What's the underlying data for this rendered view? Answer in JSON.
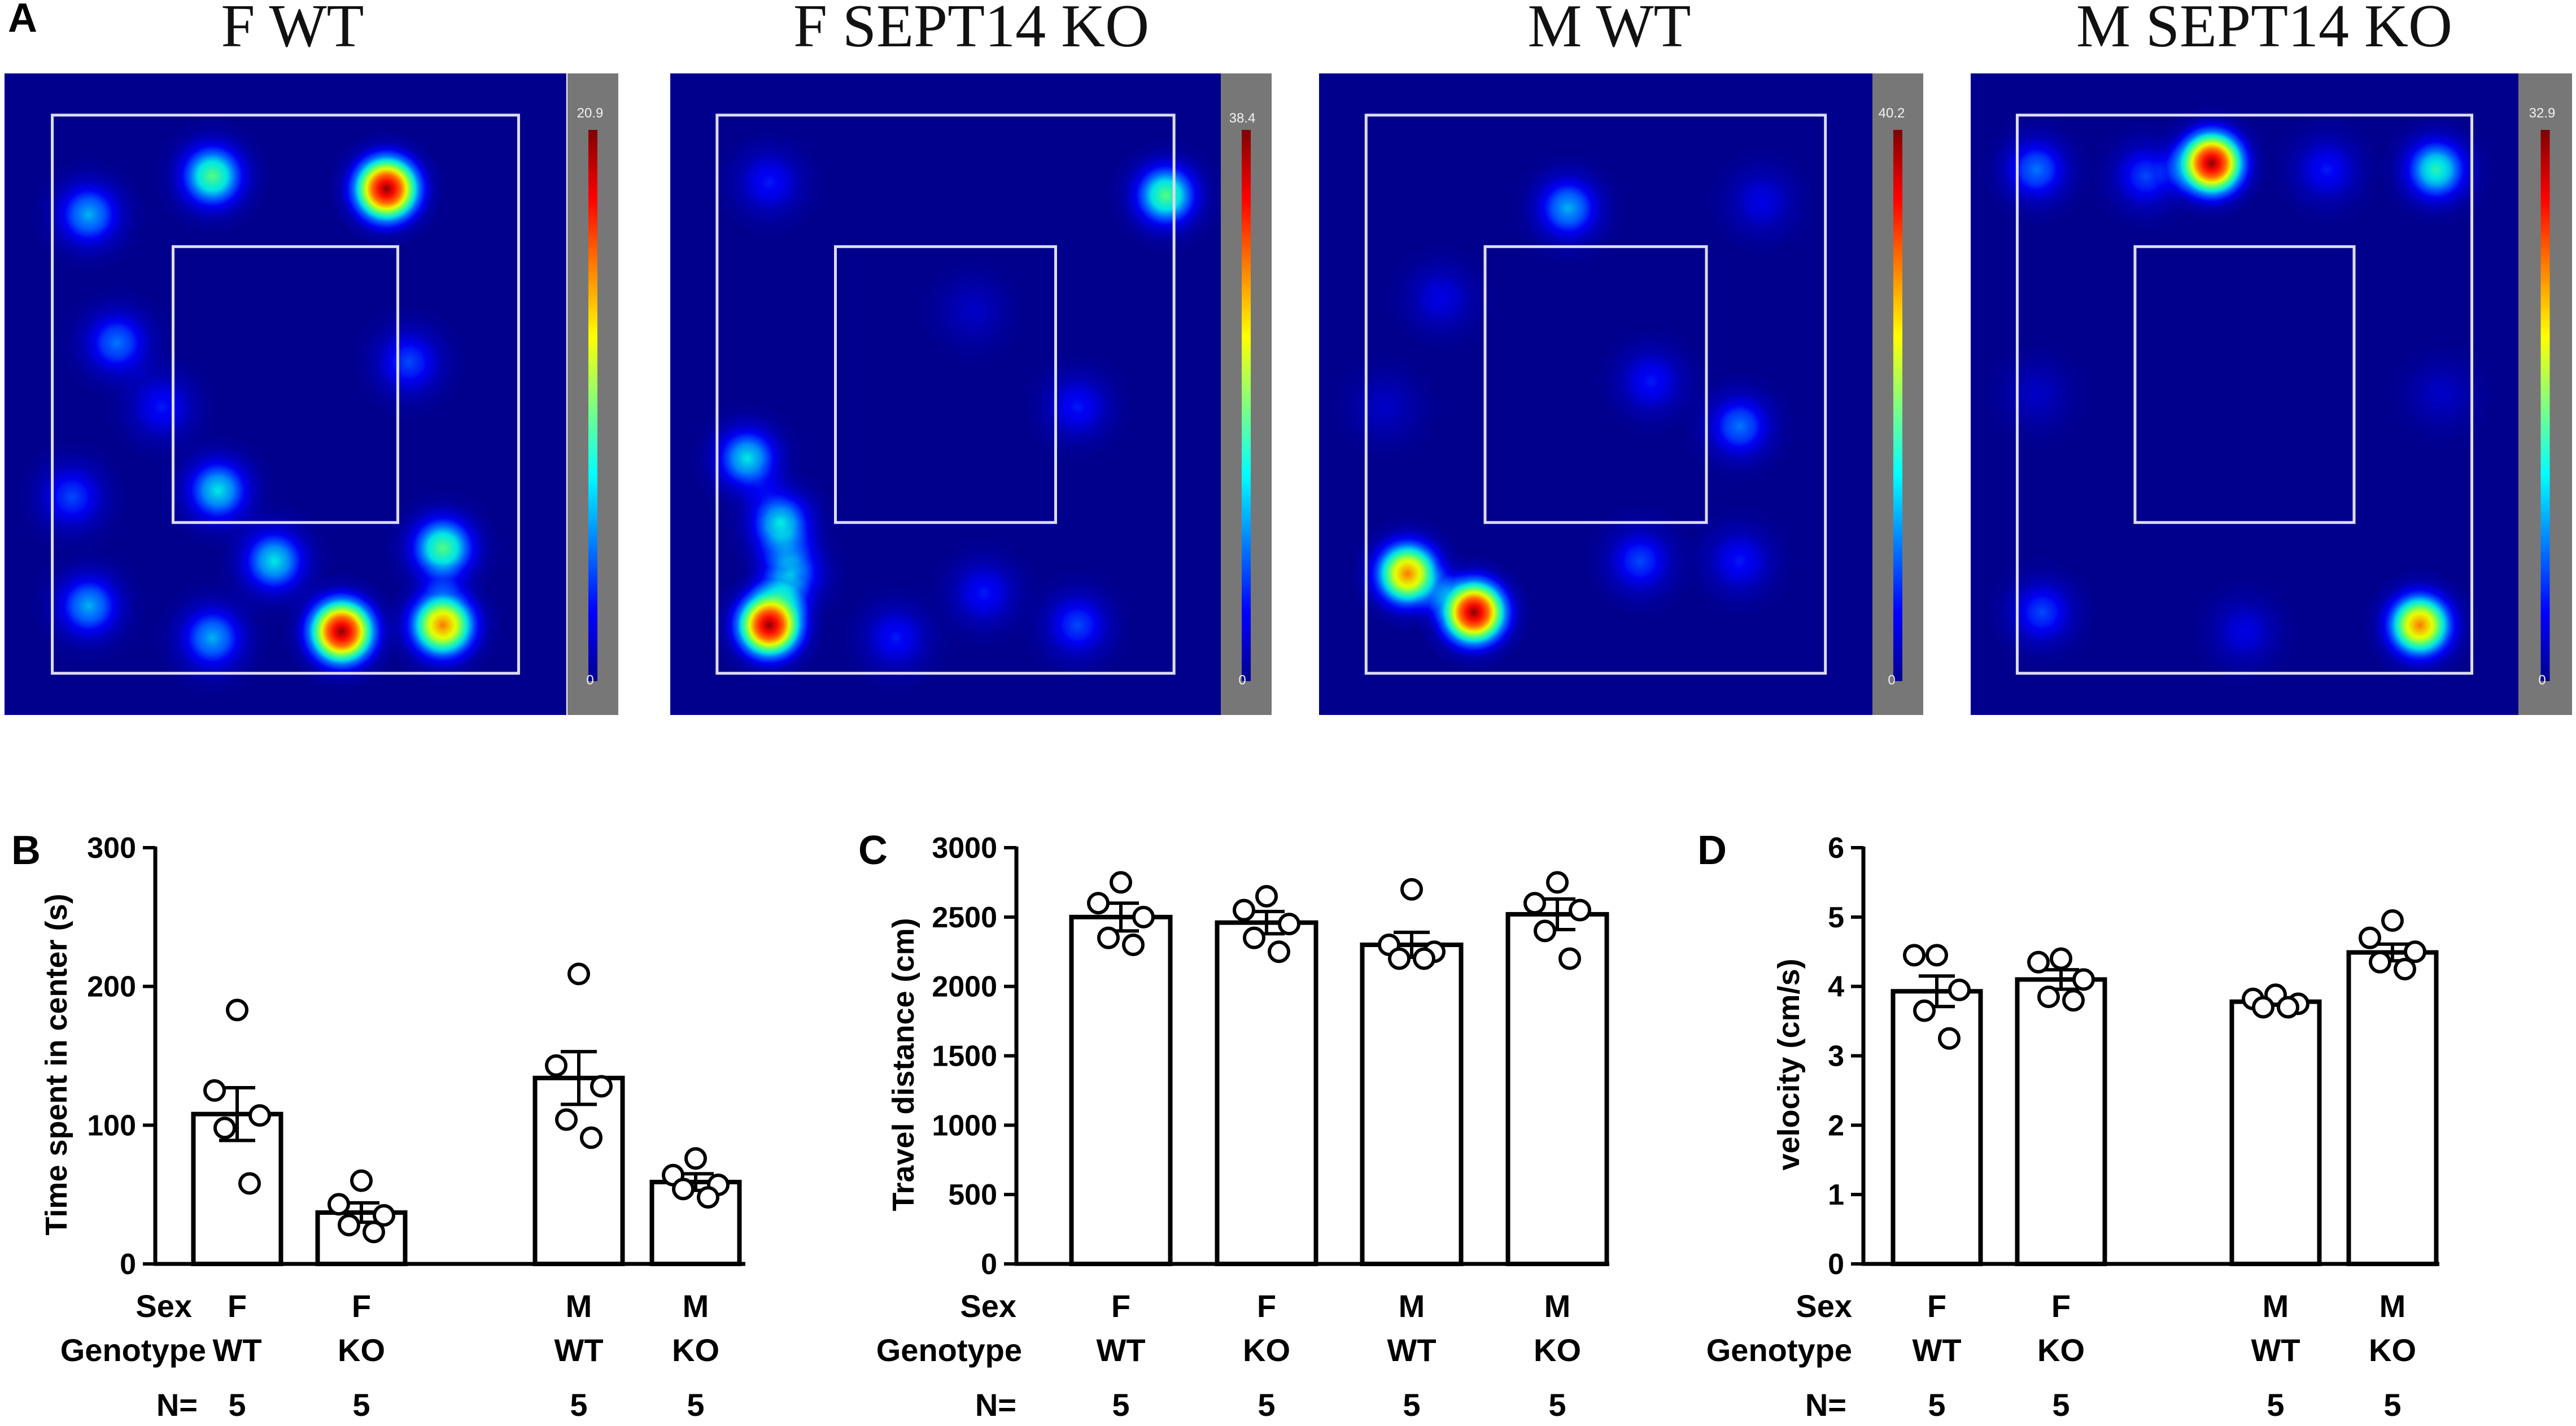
{
  "panel_labels": {
    "A": "A",
    "B": "B",
    "C": "C",
    "D": "D"
  },
  "heatmaps": [
    {
      "title": "F WT",
      "colorbar_max": "20.9",
      "colorbar_min": "0",
      "hotspots": [
        [
          0.68,
          0.18,
          1.0
        ],
        [
          0.6,
          0.87,
          1.0
        ],
        [
          0.78,
          0.86,
          0.8
        ],
        [
          0.78,
          0.74,
          0.55
        ],
        [
          0.37,
          0.16,
          0.55
        ],
        [
          0.15,
          0.22,
          0.4
        ],
        [
          0.2,
          0.42,
          0.35
        ],
        [
          0.38,
          0.65,
          0.45
        ],
        [
          0.48,
          0.76,
          0.45
        ],
        [
          0.15,
          0.83,
          0.4
        ],
        [
          0.37,
          0.88,
          0.4
        ],
        [
          0.12,
          0.66,
          0.3
        ],
        [
          0.28,
          0.52,
          0.25
        ],
        [
          0.72,
          0.45,
          0.3
        ]
      ]
    },
    {
      "title": "F SEPT14 KO",
      "colorbar_max": "38.4",
      "colorbar_min": "0",
      "hotspots": [
        [
          0.18,
          0.86,
          1.0
        ],
        [
          0.14,
          0.6,
          0.45
        ],
        [
          0.2,
          0.7,
          0.45
        ],
        [
          0.22,
          0.78,
          0.4
        ],
        [
          0.9,
          0.19,
          0.55
        ],
        [
          0.18,
          0.17,
          0.25
        ],
        [
          0.57,
          0.81,
          0.25
        ],
        [
          0.74,
          0.86,
          0.3
        ],
        [
          0.74,
          0.52,
          0.25
        ],
        [
          0.55,
          0.37,
          0.15
        ],
        [
          0.41,
          0.88,
          0.25
        ]
      ]
    },
    {
      "title": "M WT",
      "colorbar_max": "40.2",
      "colorbar_min": "0",
      "hotspots": [
        [
          0.28,
          0.84,
          1.0
        ],
        [
          0.16,
          0.78,
          0.8
        ],
        [
          0.45,
          0.21,
          0.4
        ],
        [
          0.76,
          0.55,
          0.35
        ],
        [
          0.58,
          0.76,
          0.3
        ],
        [
          0.76,
          0.76,
          0.25
        ],
        [
          0.22,
          0.35,
          0.2
        ],
        [
          0.6,
          0.48,
          0.25
        ],
        [
          0.8,
          0.2,
          0.2
        ],
        [
          0.12,
          0.52,
          0.15
        ]
      ]
    },
    {
      "title": "M SEPT14 KO",
      "colorbar_max": "32.9",
      "colorbar_min": "0",
      "hotspots": [
        [
          0.44,
          0.14,
          1.0
        ],
        [
          0.82,
          0.86,
          0.8
        ],
        [
          0.85,
          0.15,
          0.5
        ],
        [
          0.12,
          0.15,
          0.35
        ],
        [
          0.13,
          0.84,
          0.3
        ],
        [
          0.5,
          0.87,
          0.2
        ],
        [
          0.32,
          0.16,
          0.3
        ],
        [
          0.65,
          0.15,
          0.25
        ],
        [
          0.86,
          0.5,
          0.15
        ],
        [
          0.12,
          0.5,
          0.15
        ]
      ]
    }
  ],
  "chart_data": [
    {
      "type": "bar",
      "panel": "B",
      "title": "",
      "ylabel": "Time spent in center (s)",
      "ylim": [
        0,
        300
      ],
      "yticks": [
        0,
        100,
        200,
        300
      ],
      "categories": [
        "F WT",
        "F KO",
        "M WT",
        "M KO"
      ],
      "group_gap": true,
      "values": [
        108,
        37,
        134,
        59
      ],
      "sem": [
        19,
        7,
        19,
        6
      ],
      "points": [
        [
          183,
          125,
          107,
          98,
          58
        ],
        [
          60,
          43,
          35,
          28,
          23
        ],
        [
          209,
          143,
          128,
          104,
          91
        ],
        [
          76,
          64,
          57,
          54,
          48
        ]
      ]
    },
    {
      "type": "bar",
      "panel": "C",
      "title": "",
      "ylabel": "Travel distance (cm)",
      "ylim": [
        0,
        3000
      ],
      "yticks": [
        0,
        500,
        1000,
        1500,
        2000,
        2500,
        3000
      ],
      "categories": [
        "F WT",
        "F KO",
        "M WT",
        "M KO"
      ],
      "group_gap": false,
      "values": [
        2500,
        2460,
        2300,
        2520
      ],
      "sem": [
        100,
        80,
        90,
        110
      ],
      "points": [
        [
          2750,
          2600,
          2500,
          2350,
          2300
        ],
        [
          2650,
          2550,
          2450,
          2350,
          2250
        ],
        [
          2700,
          2300,
          2250,
          2200,
          2200
        ],
        [
          2750,
          2600,
          2550,
          2400,
          2200
        ]
      ]
    },
    {
      "type": "bar",
      "panel": "D",
      "title": "",
      "ylabel": "velocity (cm/s)",
      "ylim": [
        0,
        6
      ],
      "yticks": [
        0,
        1,
        2,
        3,
        4,
        5,
        6
      ],
      "categories": [
        "F WT",
        "F KO",
        "M WT",
        "M KO"
      ],
      "group_gap": true,
      "values": [
        3.93,
        4.1,
        3.78,
        4.49
      ],
      "sem": [
        0.22,
        0.14,
        0.05,
        0.12
      ],
      "points": [
        [
          4.45,
          4.45,
          3.95,
          3.65,
          3.25
        ],
        [
          4.4,
          4.35,
          4.1,
          3.85,
          3.8
        ],
        [
          3.88,
          3.82,
          3.75,
          3.7,
          3.7
        ],
        [
          4.95,
          4.7,
          4.5,
          4.35,
          4.25
        ]
      ]
    }
  ],
  "row_labels": {
    "sex": "Sex",
    "genotype": "Genotype",
    "n": "N="
  },
  "columns": [
    {
      "sex": "F",
      "genotype": "WT",
      "n": "5"
    },
    {
      "sex": "F",
      "genotype": "KO",
      "n": "5"
    },
    {
      "sex": "M",
      "genotype": "WT",
      "n": "5"
    },
    {
      "sex": "M",
      "genotype": "KO",
      "n": "5"
    }
  ]
}
